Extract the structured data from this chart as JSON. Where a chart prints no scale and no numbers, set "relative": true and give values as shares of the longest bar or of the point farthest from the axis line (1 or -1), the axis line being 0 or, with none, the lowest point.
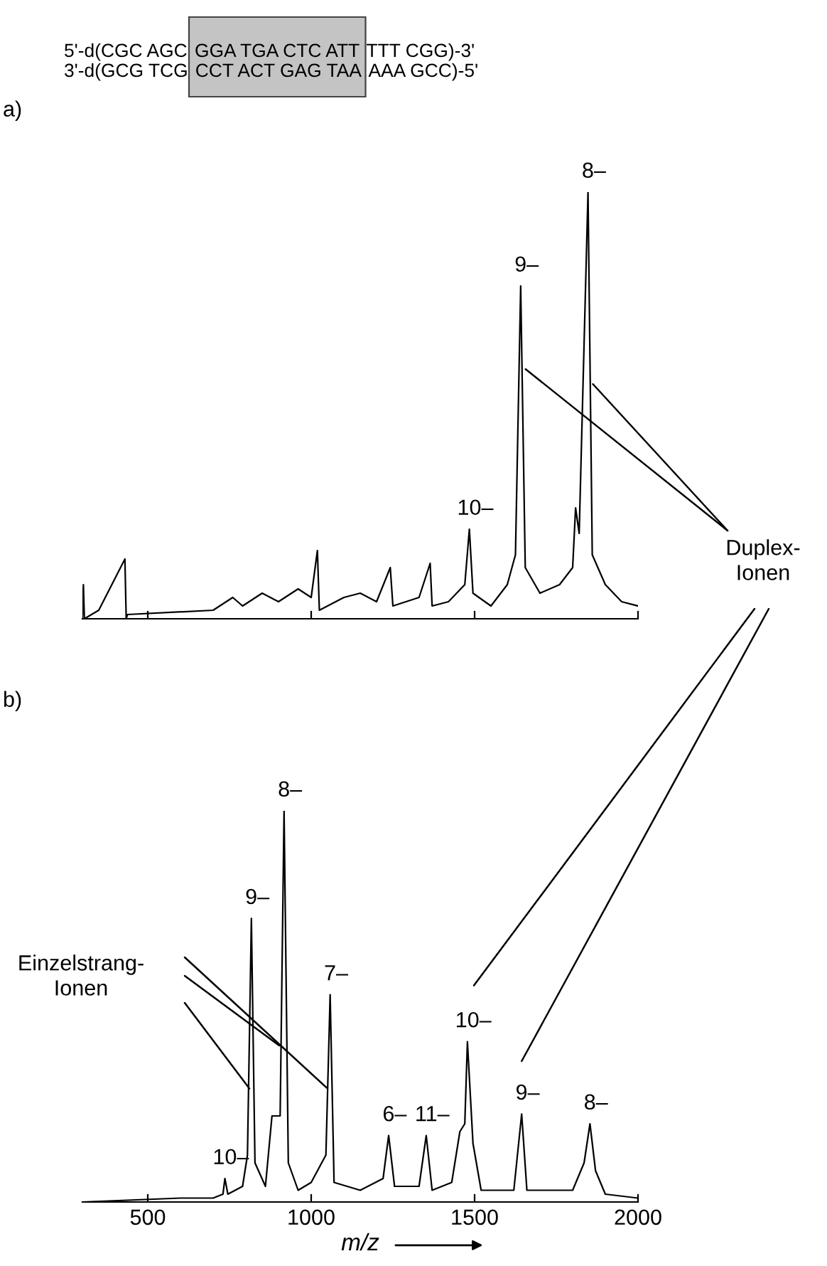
{
  "chart_data": [
    {
      "type": "line",
      "title": "a)",
      "relative": true,
      "xlim": [
        300,
        2000
      ],
      "xticks": [
        {
          "value": 500,
          "label": null
        },
        {
          "value": 1000,
          "label": null
        },
        {
          "value": 1500,
          "label": null
        },
        {
          "value": 2000,
          "label": null
        }
      ],
      "tick_labels": false,
      "grid": false,
      "legend": false,
      "marker": "none",
      "line_style": "solid",
      "series": [
        {
          "color": "#000000",
          "x": [
            300,
            303,
            306,
            350,
            430,
            434,
            438,
            700,
            760,
            790,
            850,
            900,
            960,
            1000,
            1019,
            1025,
            1100,
            1150,
            1200,
            1242,
            1250,
            1330,
            1364,
            1370,
            1420,
            1470,
            1484,
            1495,
            1550,
            1600,
            1625,
            1641,
            1655,
            1700,
            1760,
            1800,
            1809,
            1820,
            1847,
            1860,
            1900,
            1950,
            2000
          ],
          "values": [
            0.0,
            0.08,
            0.0,
            0.02,
            0.14,
            0.0,
            0.01,
            0.02,
            0.05,
            0.03,
            0.06,
            0.04,
            0.07,
            0.05,
            0.16,
            0.02,
            0.05,
            0.06,
            0.04,
            0.12,
            0.03,
            0.05,
            0.13,
            0.03,
            0.04,
            0.08,
            0.21,
            0.06,
            0.03,
            0.08,
            0.15,
            0.78,
            0.12,
            0.06,
            0.08,
            0.12,
            0.26,
            0.2,
            1.0,
            0.15,
            0.08,
            0.04,
            0.03
          ]
        }
      ],
      "annotations": [
        "5'-d(CGC AGC",
        "GGA TGA CTC ATT",
        "TTT CGG)-3'",
        "3'-d(GCG TCG",
        "CCT ACT GAG TAA",
        "AAA GCC)-5'",
        {
          "text": "10–",
          "x": 1484,
          "y": 0.21
        },
        {
          "text": "9–",
          "x": 1641,
          "y": 0.78
        },
        {
          "text": "8–",
          "x": 1847,
          "y": 1.0
        },
        "Duplex-\nIonen"
      ]
    },
    {
      "type": "line",
      "title": "b)",
      "relative": true,
      "xlabel": "m/z",
      "xlim": [
        300,
        2000
      ],
      "xticks": [
        500,
        1000,
        1500,
        2000
      ],
      "tick_labels": "x",
      "grid": false,
      "legend": false,
      "marker": "none",
      "line_style": "solid",
      "series": [
        {
          "color": "#000000",
          "x": [
            300,
            600,
            700,
            730,
            736,
            745,
            790,
            805,
            817,
            828,
            860,
            880,
            905,
            917,
            930,
            960,
            1000,
            1045,
            1058,
            1070,
            1150,
            1220,
            1237,
            1255,
            1330,
            1352,
            1370,
            1430,
            1455,
            1470,
            1478,
            1495,
            1520,
            1620,
            1644,
            1660,
            1800,
            1835,
            1853,
            1870,
            1900,
            2000
          ],
          "values": [
            0.0,
            0.01,
            0.01,
            0.02,
            0.06,
            0.02,
            0.04,
            0.12,
            0.725,
            0.1,
            0.04,
            0.22,
            0.22,
            1.0,
            0.1,
            0.03,
            0.05,
            0.12,
            0.53,
            0.05,
            0.03,
            0.06,
            0.17,
            0.04,
            0.04,
            0.17,
            0.03,
            0.05,
            0.18,
            0.2,
            0.41,
            0.15,
            0.03,
            0.03,
            0.225,
            0.03,
            0.03,
            0.1,
            0.2,
            0.08,
            0.02,
            0.01
          ]
        }
      ],
      "annotations": [
        {
          "text": "10–",
          "x": 736,
          "y": 0.06
        },
        {
          "text": "9–",
          "x": 817,
          "y": 0.725
        },
        {
          "text": "8–",
          "x": 917,
          "y": 1.0
        },
        {
          "text": "7–",
          "x": 1058,
          "y": 0.53
        },
        {
          "text": "6–",
          "x": 1237,
          "y": 0.17
        },
        {
          "text": "11–",
          "x": 1352,
          "y": 0.17
        },
        {
          "text": "10–",
          "x": 1478,
          "y": 0.41
        },
        {
          "text": "9–",
          "x": 1644,
          "y": 0.225
        },
        {
          "text": "8–",
          "x": 1853,
          "y": 0.2
        },
        "Einzelstrang-\nIonen"
      ]
    }
  ]
}
